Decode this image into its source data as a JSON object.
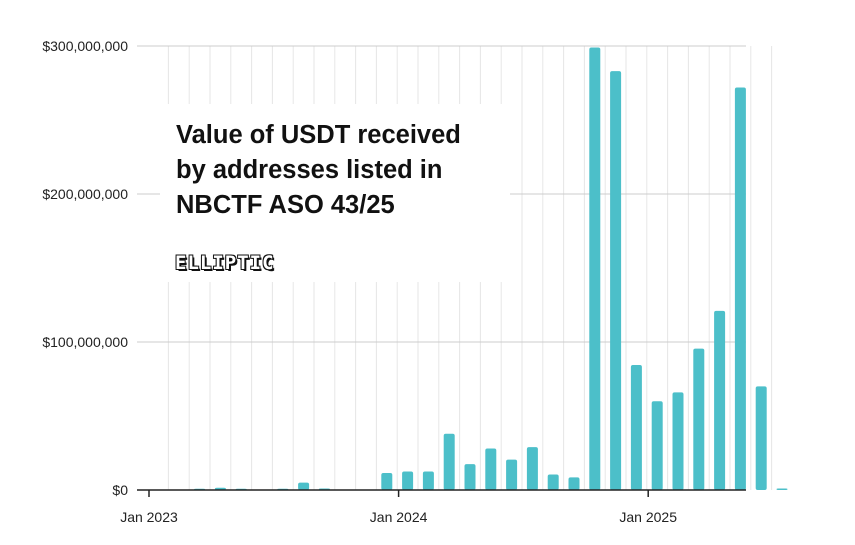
{
  "chart_data": {
    "type": "bar",
    "title": "Value of USDT received by addresses listed in NBCTF ASO 43/25",
    "xlabel": "",
    "ylabel": "",
    "ylim": [
      0,
      300000000
    ],
    "yticks": [
      0,
      100000000,
      200000000,
      300000000
    ],
    "ytick_labels": [
      "$0",
      "$100,000,000",
      "$200,000,000",
      "$300,000,000"
    ],
    "xtick_labels": [
      "Jan 2023",
      "Jan 2024",
      "Jan 2025"
    ],
    "grid": true,
    "categories": [
      "2023-01",
      "2023-02",
      "2023-03",
      "2023-04",
      "2023-05",
      "2023-06",
      "2023-07",
      "2023-08",
      "2023-09",
      "2023-10",
      "2023-11",
      "2023-12",
      "2024-01",
      "2024-02",
      "2024-03",
      "2024-04",
      "2024-05",
      "2024-06",
      "2024-07",
      "2024-08",
      "2024-09",
      "2024-10",
      "2024-11",
      "2024-12",
      "2025-01",
      "2025-02",
      "2025-03",
      "2025-04",
      "2025-05",
      "2025-06",
      "2025-07"
    ],
    "values": [
      0,
      0,
      500000,
      1500000,
      800000,
      0,
      500000,
      5000000,
      1000000,
      0,
      0,
      11500000,
      12500000,
      12500000,
      38000000,
      17500000,
      28000000,
      20500000,
      29000000,
      10500000,
      8500000,
      299000000,
      283000000,
      84500000,
      60000000,
      66000000,
      95500000,
      121000000,
      272000000,
      70000000,
      1000000
    ],
    "color": "#4cbfc9"
  },
  "annotation": {
    "title_lines": [
      "Value of USDT received",
      "by addresses listed in",
      "NBCTF ASO 43/25"
    ],
    "logo": "ELLIPTIC"
  }
}
